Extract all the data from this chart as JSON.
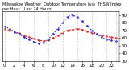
{
  "title": "Milwaukee Weather  Outdoor Temperature (vs)  THSW Index  per Hour  (Last 24 Hours)",
  "hours": [
    0,
    1,
    2,
    3,
    4,
    5,
    6,
    7,
    8,
    9,
    10,
    11,
    12,
    13,
    14,
    15,
    16,
    17,
    18,
    19,
    20,
    21,
    22,
    23
  ],
  "temp": [
    72,
    70,
    68,
    66,
    63,
    61,
    59,
    57,
    56,
    57,
    60,
    63,
    67,
    70,
    71,
    72,
    71,
    69,
    67,
    65,
    63,
    62,
    61,
    60
  ],
  "thsw": [
    75,
    72,
    68,
    65,
    61,
    58,
    55,
    53,
    54,
    58,
    65,
    72,
    80,
    88,
    90,
    87,
    82,
    76,
    70,
    65,
    61,
    58,
    57,
    56
  ],
  "temp_color": "#dd2222",
  "thsw_color": "#2222dd",
  "bg_color": "#ffffff",
  "grid_color": "#aaaaaa",
  "ylim_min": 30,
  "ylim_max": 95,
  "yticks": [
    30,
    40,
    50,
    60,
    70,
    80,
    90
  ],
  "tick_fontsize": 4,
  "title_fontsize": 3.5
}
